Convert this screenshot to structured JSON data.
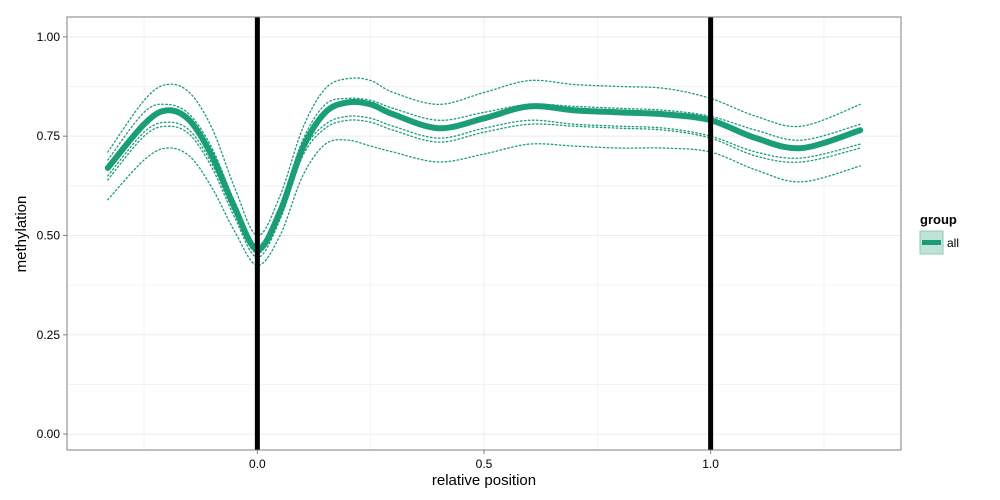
{
  "chart_data": {
    "type": "line",
    "xlabel": "relative position",
    "ylabel": "methylation",
    "xlim": [
      -0.42,
      1.42
    ],
    "ylim": [
      -0.04,
      1.05
    ],
    "x_ticks": [
      0.0,
      0.5,
      1.0
    ],
    "x_tick_labels": [
      "0.0",
      "0.5",
      "1.0"
    ],
    "y_ticks": [
      0.0,
      0.25,
      0.5,
      0.75,
      1.0
    ],
    "y_tick_labels": [
      "0.00",
      "0.25",
      "0.50",
      "0.75",
      "1.00"
    ],
    "grid": true,
    "legend": {
      "title": "group",
      "position": "right",
      "entries": [
        "all"
      ]
    },
    "vertical_lines": [
      0.0,
      1.0
    ],
    "x": [
      -0.33,
      -0.25,
      -0.2,
      -0.15,
      -0.1,
      -0.05,
      0.0,
      0.05,
      0.1,
      0.15,
      0.2,
      0.25,
      0.3,
      0.4,
      0.5,
      0.6,
      0.7,
      0.8,
      0.9,
      1.0,
      1.1,
      1.2,
      1.33
    ],
    "series": [
      {
        "name": "all",
        "style": "solid",
        "values": [
          0.67,
          0.78,
          0.815,
          0.79,
          0.7,
          0.57,
          0.465,
          0.56,
          0.72,
          0.81,
          0.835,
          0.83,
          0.805,
          0.77,
          0.795,
          0.825,
          0.815,
          0.81,
          0.805,
          0.79,
          0.745,
          0.72,
          0.765
        ]
      },
      {
        "style": "dotted",
        "values": [
          0.71,
          0.84,
          0.88,
          0.86,
          0.77,
          0.62,
          0.5,
          0.6,
          0.77,
          0.87,
          0.895,
          0.89,
          0.86,
          0.83,
          0.86,
          0.89,
          0.88,
          0.875,
          0.87,
          0.845,
          0.8,
          0.775,
          0.83
        ]
      },
      {
        "style": "dotted",
        "values": [
          0.69,
          0.81,
          0.83,
          0.805,
          0.72,
          0.585,
          0.475,
          0.575,
          0.74,
          0.83,
          0.845,
          0.84,
          0.82,
          0.79,
          0.81,
          0.83,
          0.825,
          0.82,
          0.815,
          0.8,
          0.765,
          0.74,
          0.78
        ]
      },
      {
        "style": "dotted",
        "values": [
          0.65,
          0.76,
          0.785,
          0.765,
          0.68,
          0.555,
          0.455,
          0.55,
          0.71,
          0.78,
          0.8,
          0.795,
          0.775,
          0.745,
          0.77,
          0.79,
          0.78,
          0.775,
          0.77,
          0.75,
          0.71,
          0.695,
          0.73
        ]
      },
      {
        "style": "dotted",
        "values": [
          0.64,
          0.75,
          0.775,
          0.755,
          0.67,
          0.545,
          0.445,
          0.54,
          0.7,
          0.77,
          0.79,
          0.785,
          0.765,
          0.735,
          0.76,
          0.78,
          0.775,
          0.77,
          0.765,
          0.745,
          0.7,
          0.685,
          0.72
        ]
      },
      {
        "style": "dotted",
        "values": [
          0.59,
          0.69,
          0.72,
          0.7,
          0.62,
          0.51,
          0.425,
          0.5,
          0.65,
          0.73,
          0.74,
          0.725,
          0.71,
          0.685,
          0.705,
          0.73,
          0.725,
          0.72,
          0.72,
          0.71,
          0.665,
          0.635,
          0.675
        ]
      }
    ],
    "colors": {
      "line": "#1b9e77",
      "legend_fill": "#bfe3d6",
      "vline": "#000000",
      "grid": "#ececec",
      "border": "#7f7f7f"
    }
  }
}
